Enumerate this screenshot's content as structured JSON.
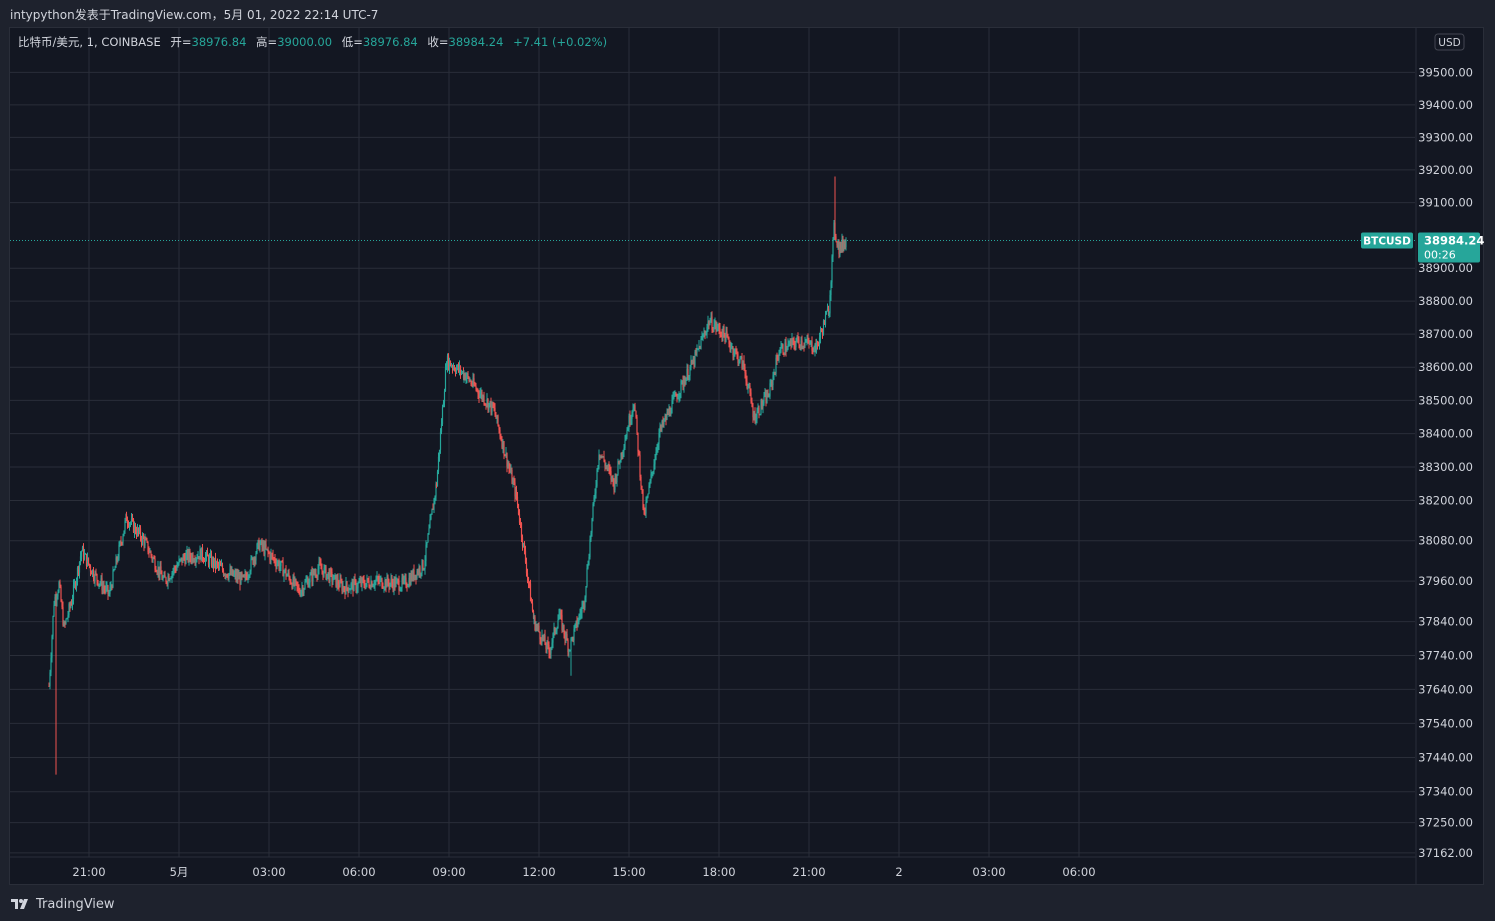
{
  "header": {
    "title": "intypython发表于TradingView.com，5月 01, 2022 22:14 UTC-7"
  },
  "legend": {
    "symbol": "比特币/美元, 1, COINBASE",
    "open_label": "开=",
    "open": "38976.84",
    "high_label": "高=",
    "high": "39000.00",
    "low_label": "低=",
    "low": "38976.84",
    "close_label": "收=",
    "close": "38984.24",
    "change": "+7.41 (+0.02%)"
  },
  "price_scale": {
    "currency": "USD",
    "ticks": [
      "39500.00",
      "39400.00",
      "39300.00",
      "39200.00",
      "39100.00",
      "38900.00",
      "38800.00",
      "38700.00",
      "38600.00",
      "38500.00",
      "38400.00",
      "38300.00",
      "38200.00",
      "38080.00",
      "37960.00",
      "37840.00",
      "37740.00",
      "37640.00",
      "37540.00",
      "37440.00",
      "37340.00",
      "37250.00",
      "37162.00"
    ]
  },
  "current_price": {
    "symbol_tag": "BTCUSD",
    "price": "38984.24",
    "countdown": "00:26"
  },
  "time_axis": {
    "labels": [
      "21:00",
      "5月",
      "03:00",
      "06:00",
      "09:00",
      "12:00",
      "15:00",
      "18:00",
      "21:00",
      "2",
      "03:00",
      "06:00"
    ]
  },
  "footer": {
    "brand": "TradingView"
  },
  "colors": {
    "background": "#131722",
    "grid": "#2a2e39",
    "up": "#26a69a",
    "down": "#ef5350",
    "text": "#d1d4dc"
  },
  "chart_data": {
    "type": "candlestick",
    "interval": "1 minute",
    "symbol": "BTCUSD",
    "y_scale": "log",
    "ylim": [
      37162,
      39500
    ],
    "xlim": [
      "2022-04-30 19:40",
      "2022-05-02 07:05"
    ],
    "close_series": [
      [
        "2022-04-30 19:40",
        37650
      ],
      [
        "2022-04-30 19:50",
        37900
      ],
      [
        "2022-04-30 20:00",
        37950
      ],
      [
        "2022-04-30 20:10",
        37820
      ],
      [
        "2022-04-30 20:25",
        37900
      ],
      [
        "2022-04-30 20:45",
        38050
      ],
      [
        "2022-04-30 21:10",
        37980
      ],
      [
        "2022-04-30 21:40",
        37920
      ],
      [
        "2022-04-30 22:15",
        38150
      ],
      [
        "2022-04-30 22:50",
        38080
      ],
      [
        "2022-04-30 23:30",
        37960
      ],
      [
        "2022-05-01 00:10",
        38030
      ],
      [
        "2022-05-01 00:45",
        38040
      ],
      [
        "2022-05-01 01:30",
        37990
      ],
      [
        "2022-05-01 02:10",
        37960
      ],
      [
        "2022-05-01 02:40",
        38070
      ],
      [
        "2022-05-01 03:20",
        38010
      ],
      [
        "2022-05-01 04:00",
        37930
      ],
      [
        "2022-05-01 04:40",
        38000
      ],
      [
        "2022-05-01 05:30",
        37940
      ],
      [
        "2022-05-01 06:30",
        37960
      ],
      [
        "2022-05-01 07:30",
        37950
      ],
      [
        "2022-05-01 08:10",
        38010
      ],
      [
        "2022-05-01 08:35",
        38250
      ],
      [
        "2022-05-01 08:55",
        38620
      ],
      [
        "2022-05-01 09:30",
        38580
      ],
      [
        "2022-05-01 10:30",
        38470
      ],
      [
        "2022-05-01 11:15",
        38210
      ],
      [
        "2022-05-01 11:50",
        37840
      ],
      [
        "2022-05-01 12:20",
        37750
      ],
      [
        "2022-05-01 12:40",
        37860
      ],
      [
        "2022-05-01 13:00",
        37760
      ],
      [
        "2022-05-01 13:30",
        37900
      ],
      [
        "2022-05-01 14:00",
        38350
      ],
      [
        "2022-05-01 14:30",
        38250
      ],
      [
        "2022-05-01 15:10",
        38500
      ],
      [
        "2022-05-01 15:30",
        38150
      ],
      [
        "2022-05-01 16:00",
        38400
      ],
      [
        "2022-05-01 16:30",
        38500
      ],
      [
        "2022-05-01 17:10",
        38620
      ],
      [
        "2022-05-01 17:40",
        38740
      ],
      [
        "2022-05-01 18:10",
        38700
      ],
      [
        "2022-05-01 18:50",
        38600
      ],
      [
        "2022-05-01 19:10",
        38450
      ],
      [
        "2022-05-01 19:40",
        38520
      ],
      [
        "2022-05-01 20:00",
        38650
      ],
      [
        "2022-05-01 20:40",
        38680
      ],
      [
        "2022-05-01 21:15",
        38660
      ],
      [
        "2022-05-01 21:40",
        38780
      ],
      [
        "2022-05-01 21:50",
        39020
      ],
      [
        "2022-05-01 22:00",
        38960
      ],
      [
        "2022-05-01 22:14",
        38984.24
      ]
    ],
    "extremes": {
      "low": [
        [
          "2022-04-30 19:55",
          37390
        ],
        [
          "2022-05-01 13:05",
          37680
        ]
      ],
      "high": [
        [
          "2022-05-01 21:52",
          39180
        ]
      ]
    }
  }
}
